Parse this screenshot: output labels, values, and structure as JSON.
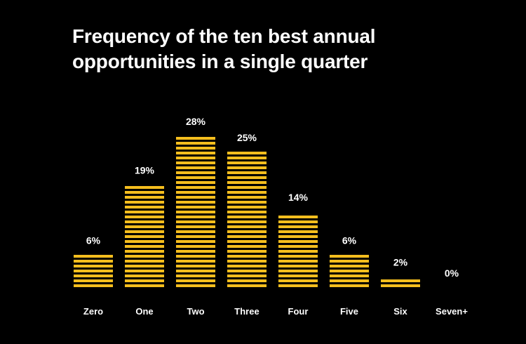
{
  "chart_data": {
    "type": "bar",
    "title": "Frequency of the ten best annual opportunities in a single quarter",
    "categories": [
      "Zero",
      "One",
      "Two",
      "Three",
      "Four",
      "Five",
      "Six",
      "Seven+"
    ],
    "values": [
      6,
      19,
      28,
      25,
      14,
      6,
      2,
      0
    ],
    "value_labels": [
      "6%",
      "19%",
      "28%",
      "25%",
      "14%",
      "6%",
      "2%",
      "0%"
    ],
    "ylim": [
      0,
      28
    ],
    "grid": false,
    "bar_color": "#F5BE1E",
    "background_color": "#000000",
    "text_color": "#FFFFFF"
  }
}
